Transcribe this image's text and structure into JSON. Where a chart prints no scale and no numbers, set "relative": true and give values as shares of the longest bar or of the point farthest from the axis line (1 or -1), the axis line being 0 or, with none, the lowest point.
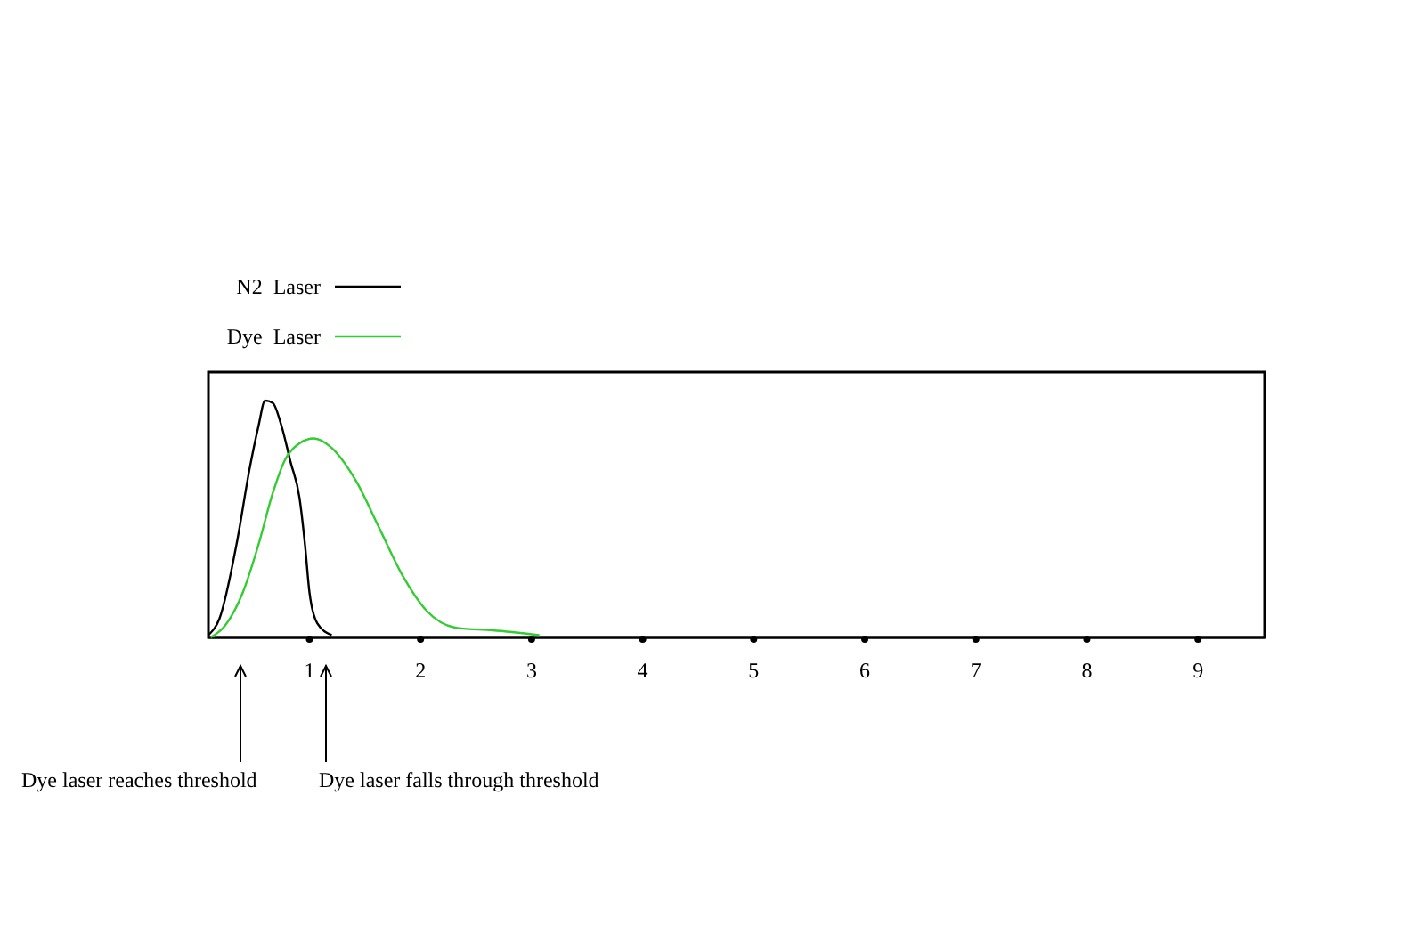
{
  "chart_data": {
    "type": "line",
    "relative": true,
    "xlim": [
      0.09,
      9.6
    ],
    "xticks": [
      1,
      2,
      3,
      4,
      5,
      6,
      7,
      8,
      9
    ],
    "legend": "top left",
    "grid": false,
    "marker": "none",
    "line_style": "solid",
    "series": [
      {
        "name": "N2  Laser",
        "color": "#000000",
        "x": [
          0.09,
          0.19,
          0.35,
          0.46,
          0.54,
          0.6,
          0.67,
          0.75,
          0.83,
          0.91,
          0.96,
          1.0,
          1.07,
          1.2
        ],
        "values": [
          0.01,
          0.08,
          0.41,
          0.71,
          0.89,
          1.0,
          0.99,
          0.89,
          0.74,
          0.59,
          0.39,
          0.19,
          0.06,
          0.01
        ]
      },
      {
        "name": "Dye  Laser",
        "color": "#33cc33",
        "x": [
          0.11,
          0.24,
          0.4,
          0.54,
          0.67,
          0.78,
          0.91,
          1.04,
          1.2,
          1.42,
          1.63,
          1.84,
          2.06,
          2.33,
          2.65,
          3.07
        ],
        "values": [
          0.0,
          0.05,
          0.19,
          0.39,
          0.61,
          0.75,
          0.82,
          0.84,
          0.8,
          0.66,
          0.46,
          0.26,
          0.11,
          0.04,
          0.03,
          0.01
        ]
      }
    ],
    "annotations": [
      "Dye laser reaches threshold",
      "Dye laser falls through threshold"
    ]
  }
}
